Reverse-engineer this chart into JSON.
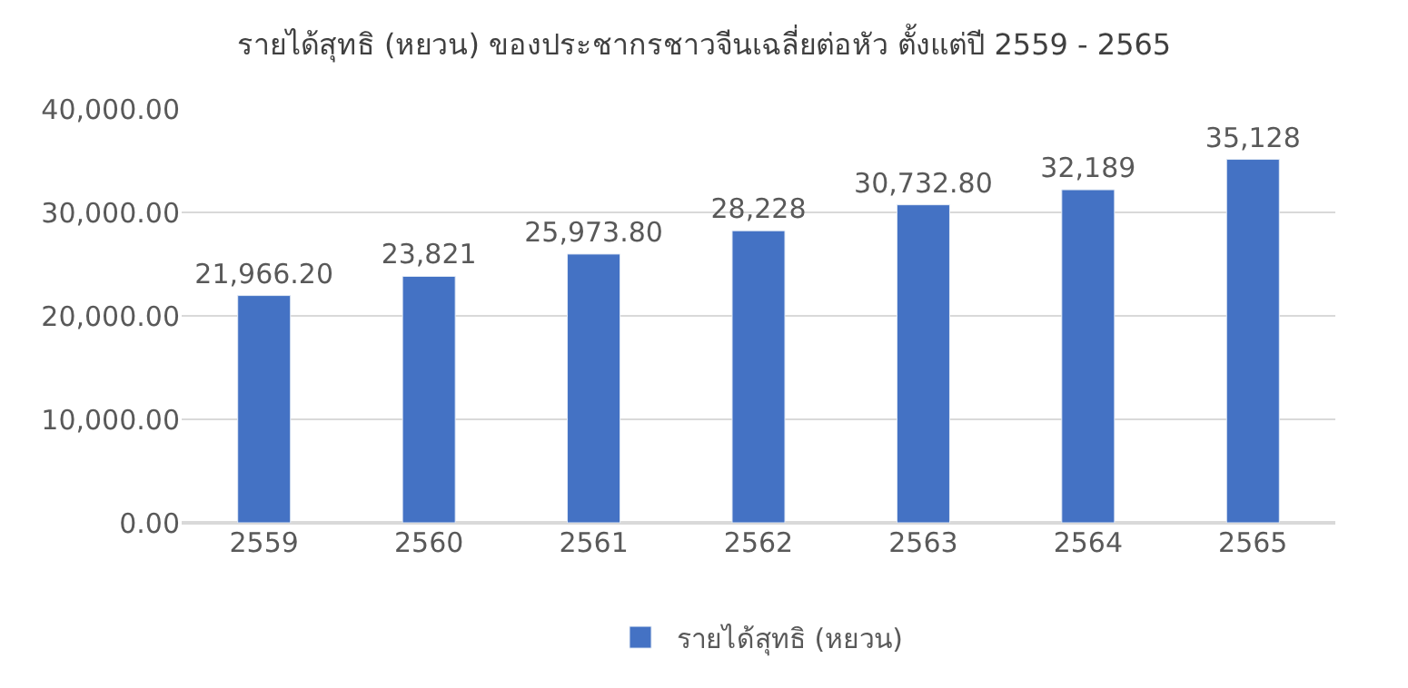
{
  "chart_data": {
    "type": "bar",
    "title": "รายได้สุทธิ (หยวน) ของประชากรชาวจีนเฉลี่ยต่อหัว ตั้งแต่ปี 2559 - 2565",
    "categories": [
      "2559",
      "2560",
      "2561",
      "2562",
      "2563",
      "2564",
      "2565"
    ],
    "series": [
      {
        "name": "รายได้สุทธิ (หยวน)",
        "color": "#4472c4",
        "values": [
          21966.2,
          23821,
          25973.8,
          28228,
          30732.8,
          32189,
          35128
        ],
        "value_labels": [
          "21,966.20",
          "23,821",
          "25,973.80",
          "28,228",
          "30,732.80",
          "32,189",
          "35,128"
        ]
      }
    ],
    "ylim": [
      0,
      40000
    ],
    "yticks": [
      {
        "value": 0,
        "label": "0.00"
      },
      {
        "value": 10000,
        "label": "10,000.00"
      },
      {
        "value": 20000,
        "label": "20,000.00"
      },
      {
        "value": 30000,
        "label": "30,000.00"
      },
      {
        "value": 40000,
        "label": "40,000.00"
      }
    ],
    "grid": "y",
    "legend": "bottom"
  }
}
